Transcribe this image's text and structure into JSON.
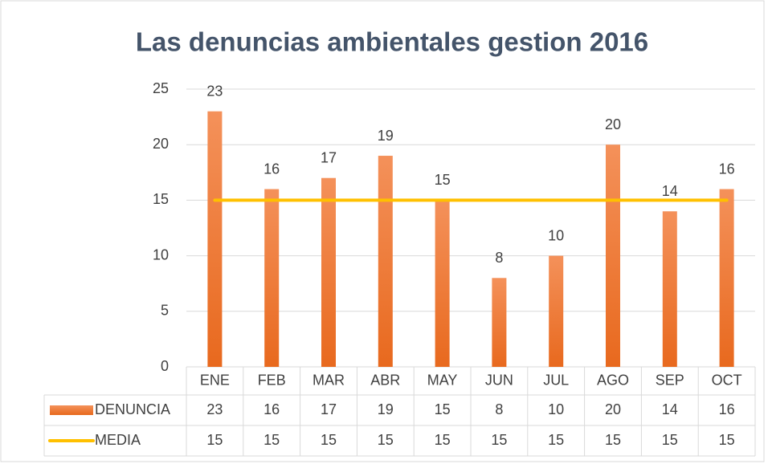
{
  "chart_data": {
    "type": "bar",
    "title": "Las denuncias ambientales gestion 2016",
    "categories": [
      "ENE",
      "FEB",
      "MAR",
      "ABR",
      "MAY",
      "JUN",
      "JUL",
      "AGO",
      "SEP",
      "OCT"
    ],
    "series": [
      {
        "name": "DENUNCIA",
        "type": "bar",
        "color": "#ED7D31",
        "values": [
          23,
          16,
          17,
          19,
          15,
          8,
          10,
          20,
          14,
          16
        ]
      },
      {
        "name": "MEDIA",
        "type": "line",
        "color": "#FFC000",
        "values": [
          15,
          15,
          15,
          15,
          15,
          15,
          15,
          15,
          15,
          15
        ]
      }
    ],
    "ylim": [
      0,
      25
    ],
    "yticks": [
      0,
      5,
      10,
      15,
      20,
      25
    ],
    "grid": true,
    "data_table": true
  }
}
